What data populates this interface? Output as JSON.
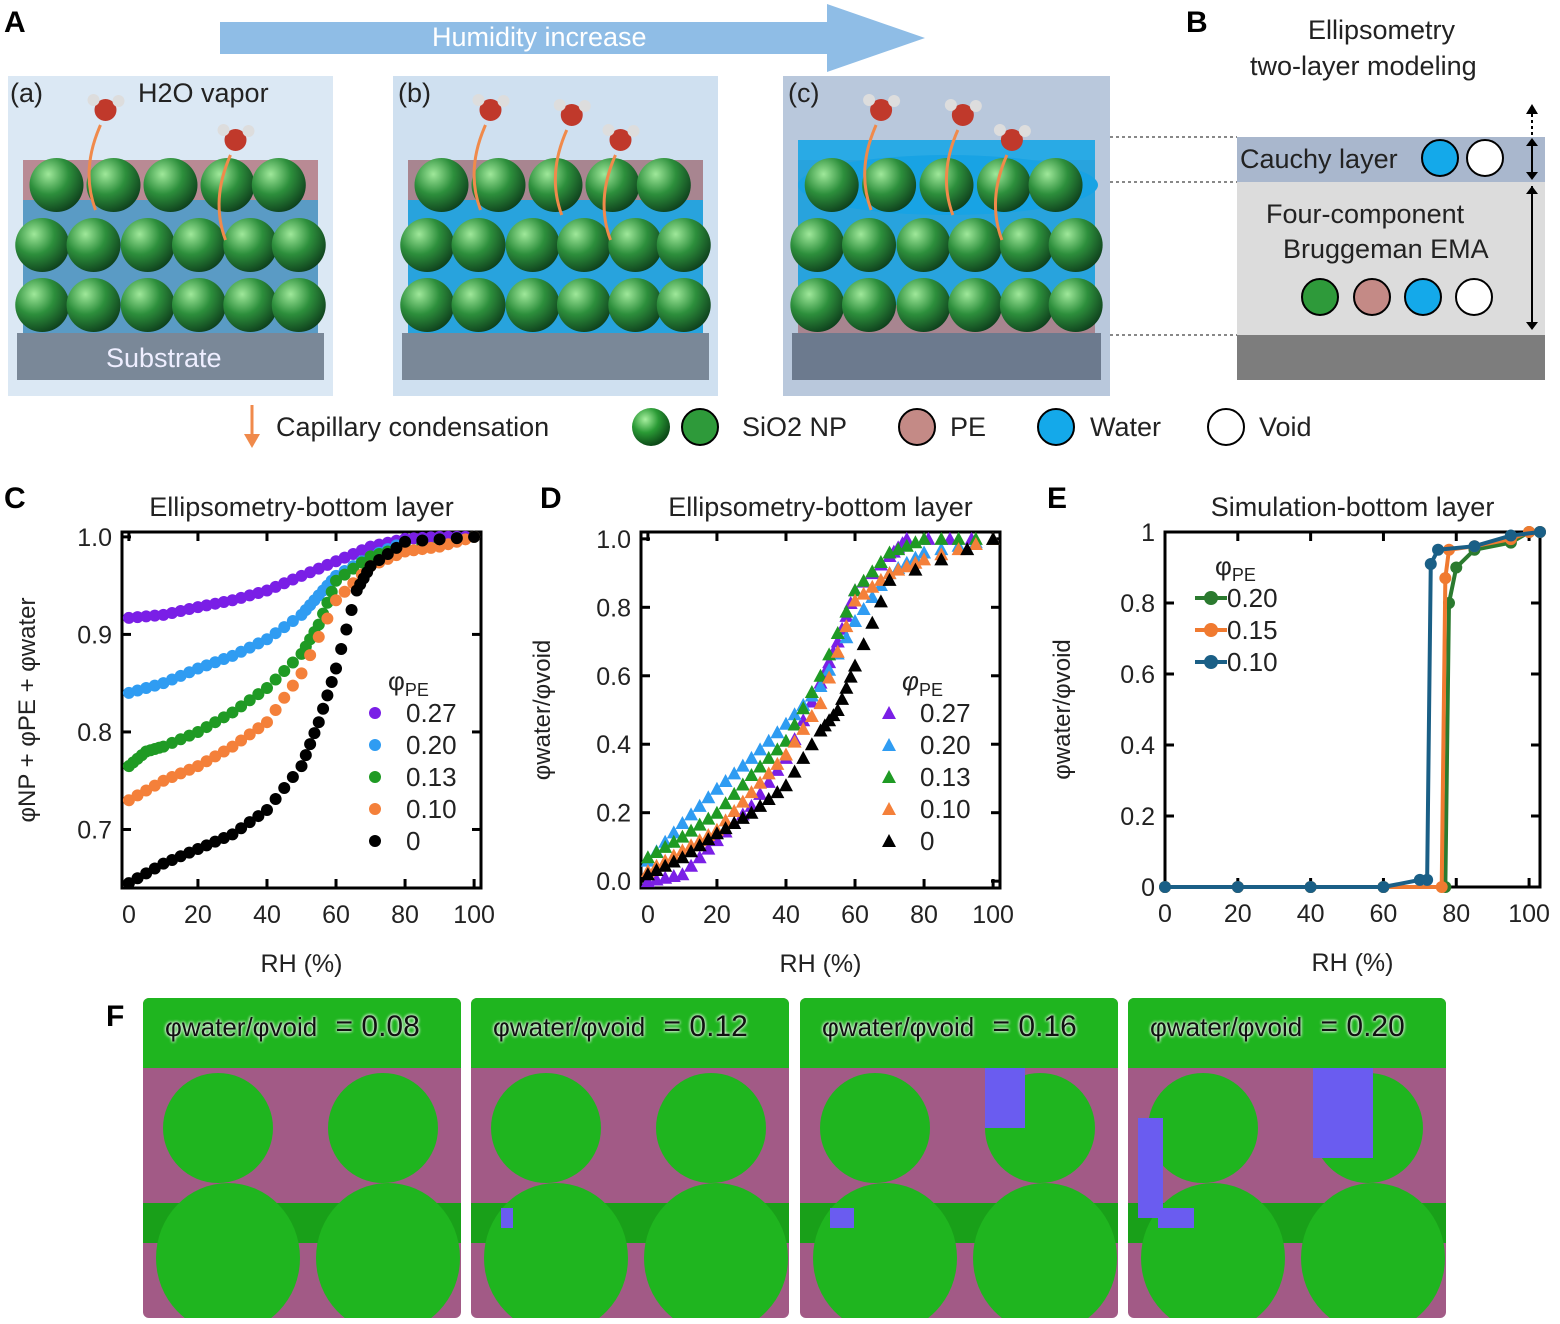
{
  "panels": {
    "A": "A",
    "B": "B",
    "C": "C",
    "D": "D",
    "E": "E",
    "F": "F"
  },
  "panelA": {
    "arrow_label": "Humidity increase",
    "subpanels": [
      "(a)",
      "(b)",
      "(c)"
    ],
    "vapor_label": "H2O vapor",
    "substrate_label": "Substrate"
  },
  "panelB": {
    "title_line1": "Ellipsometry",
    "title_line2": "two-layer modeling",
    "cauchy_label": "Cauchy layer",
    "ema_line1": "Four-component",
    "ema_line2": "Bruggeman EMA"
  },
  "legend": {
    "capillary": "Capillary condensation",
    "sio2": "SiO2 NP",
    "pe": "PE",
    "water": "Water",
    "void": "Void"
  },
  "colors": {
    "sio2": "#2e9a3a",
    "pe": "#c48a86",
    "water": "#14a9ea",
    "void": "#ffffff",
    "arrow": "#f08a4b",
    "humidity_arrow": "#8fbde6"
  },
  "chart_data": [
    {
      "type": "scatter",
      "title": "Ellipsometry-bottom layer",
      "xlabel": "RH (%)",
      "ylabel": "φNP + φPE + φwater",
      "xlim": [
        -2,
        102
      ],
      "ylim": [
        0.64,
        1.005
      ],
      "xticks": [
        0,
        20,
        40,
        60,
        80,
        100
      ],
      "yticks": [
        0.7,
        0.8,
        0.9,
        1.0
      ],
      "ytick_labels": [
        "0.7",
        "0.8",
        "0.9",
        "1.0"
      ],
      "legend_title": "φPE",
      "legend_placement": "right-middle",
      "marker": "circle",
      "series": [
        {
          "name": "0.27",
          "color": "#7a1fe6",
          "x": [
            0,
            10,
            20,
            30,
            40,
            50,
            60,
            70,
            80,
            90,
            100
          ],
          "y": [
            0.917,
            0.92,
            0.928,
            0.935,
            0.945,
            0.96,
            0.975,
            0.99,
            0.998,
            1.0,
            1.0
          ]
        },
        {
          "name": "0.20",
          "color": "#2f9cf2",
          "x": [
            0,
            10,
            20,
            30,
            40,
            50,
            55,
            60,
            70,
            80,
            100
          ],
          "y": [
            0.84,
            0.85,
            0.865,
            0.878,
            0.895,
            0.92,
            0.94,
            0.96,
            0.98,
            0.995,
            1.0
          ]
        },
        {
          "name": "0.13",
          "color": "#1f9a24",
          "x": [
            0,
            5,
            10,
            20,
            30,
            40,
            50,
            55,
            60,
            70,
            80,
            100
          ],
          "y": [
            0.765,
            0.78,
            0.785,
            0.8,
            0.82,
            0.845,
            0.88,
            0.91,
            0.955,
            0.98,
            0.99,
            1.0
          ]
        },
        {
          "name": "0.10",
          "color": "#f4803a",
          "x": [
            0,
            10,
            20,
            30,
            40,
            50,
            60,
            70,
            80,
            90,
            100
          ],
          "y": [
            0.73,
            0.75,
            0.765,
            0.785,
            0.81,
            0.86,
            0.935,
            0.97,
            0.985,
            0.99,
            1.0
          ]
        },
        {
          "name": "0",
          "color": "#000000",
          "x": [
            0,
            10,
            20,
            30,
            40,
            50,
            55,
            60,
            66,
            70,
            80,
            100
          ],
          "y": [
            0.645,
            0.665,
            0.68,
            0.695,
            0.72,
            0.765,
            0.81,
            0.865,
            0.945,
            0.97,
            0.995,
            1.0
          ]
        }
      ]
    },
    {
      "type": "scatter",
      "title": "Ellipsometry-bottom layer",
      "xlabel": "RH (%)",
      "ylabel": "φwater/φvoid",
      "xlim": [
        -2,
        102
      ],
      "ylim": [
        -0.02,
        1.02
      ],
      "xticks": [
        0,
        20,
        40,
        60,
        80,
        100
      ],
      "yticks": [
        0,
        0.2,
        0.4,
        0.6,
        0.8,
        1.0
      ],
      "ytick_labels": [
        "0.0",
        "0.2",
        "0.4",
        "0.6",
        "0.8",
        "1.0"
      ],
      "legend_title": "φPE",
      "legend_placement": "right-middle",
      "marker": "triangle",
      "series": [
        {
          "name": "0.27",
          "color": "#7a1fe6",
          "x": [
            0,
            10,
            20,
            30,
            40,
            50,
            55,
            60,
            70,
            75,
            100
          ],
          "y": [
            0.0,
            0.02,
            0.12,
            0.22,
            0.36,
            0.58,
            0.7,
            0.85,
            0.95,
            1.0,
            1.0
          ]
        },
        {
          "name": "0.20",
          "color": "#2f9cf2",
          "x": [
            0,
            10,
            20,
            30,
            40,
            50,
            60,
            70,
            80,
            100
          ],
          "y": [
            0.06,
            0.17,
            0.27,
            0.36,
            0.46,
            0.57,
            0.76,
            0.9,
            0.96,
            1.0
          ]
        },
        {
          "name": "0.13",
          "color": "#1f9a24",
          "x": [
            0,
            10,
            20,
            30,
            40,
            50,
            60,
            70,
            80,
            100
          ],
          "y": [
            0.07,
            0.13,
            0.2,
            0.31,
            0.41,
            0.6,
            0.85,
            0.96,
            1.0,
            1.0
          ]
        },
        {
          "name": "0.10",
          "color": "#f4803a",
          "x": [
            0,
            10,
            20,
            30,
            40,
            50,
            60,
            70,
            80,
            100
          ],
          "y": [
            0.03,
            0.09,
            0.15,
            0.26,
            0.37,
            0.52,
            0.82,
            0.9,
            0.94,
            1.0
          ]
        },
        {
          "name": "0",
          "color": "#000000",
          "x": [
            0,
            10,
            20,
            30,
            40,
            50,
            55,
            60,
            70,
            100
          ],
          "y": [
            0.02,
            0.07,
            0.14,
            0.2,
            0.28,
            0.44,
            0.5,
            0.63,
            0.88,
            1.0
          ]
        }
      ]
    },
    {
      "type": "line",
      "title": "Simulation-bottom layer",
      "xlabel": "RH (%)",
      "ylabel": "φwater/φvoid",
      "xlim": [
        0,
        103
      ],
      "ylim": [
        0,
        1
      ],
      "xticks": [
        0,
        20,
        40,
        60,
        80,
        100
      ],
      "yticks": [
        0,
        0.2,
        0.4,
        0.6,
        0.8,
        1
      ],
      "ytick_labels": [
        "0",
        "0.2",
        "0.4",
        "0.6",
        "0.8",
        "1"
      ],
      "legend_title": "φPE",
      "legend_placement": "top-left",
      "series": [
        {
          "name": "0.20",
          "color": "#2b7a2f",
          "x": [
            0,
            20,
            40,
            60,
            77,
            78,
            80,
            85,
            95,
            100,
            103
          ],
          "y": [
            0,
            0,
            0,
            0,
            0,
            0.8,
            0.9,
            0.95,
            0.97,
            1.0,
            1.0
          ]
        },
        {
          "name": "0.15",
          "color": "#f07a30",
          "x": [
            0,
            20,
            40,
            60,
            76,
            77,
            78,
            85,
            95,
            100,
            103
          ],
          "y": [
            0,
            0,
            0,
            0,
            0,
            0.87,
            0.95,
            0.96,
            0.98,
            1.0,
            1.0
          ]
        },
        {
          "name": "0.10",
          "color": "#1a5f86",
          "x": [
            0,
            20,
            40,
            60,
            70,
            72,
            73,
            75,
            85,
            95,
            103
          ],
          "y": [
            0,
            0,
            0,
            0,
            0.02,
            0.02,
            0.91,
            0.95,
            0.96,
            0.99,
            1.0
          ]
        }
      ]
    }
  ],
  "panelF": {
    "label_prefix": "φwater/φvoid",
    "values": [
      "= 0.08",
      "= 0.12",
      "= 0.16",
      "= 0.20"
    ]
  }
}
